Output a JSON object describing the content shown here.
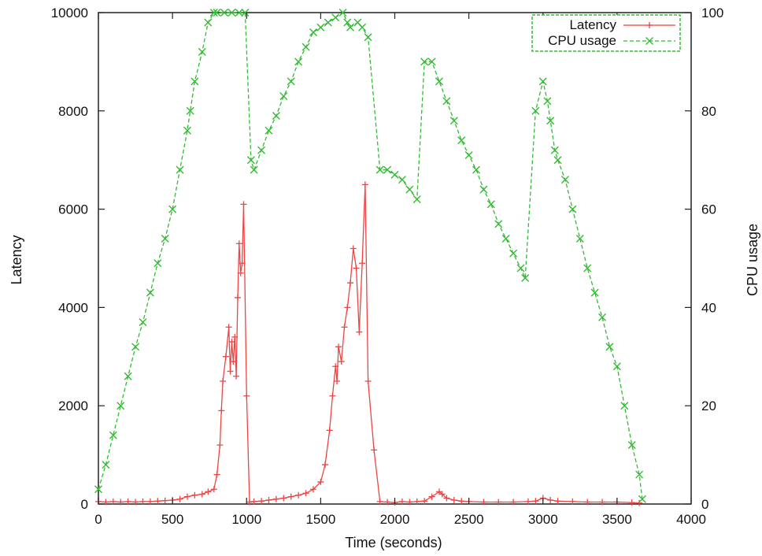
{
  "chart_data": {
    "type": "line",
    "title": "",
    "xlabel": "Time (seconds)",
    "ylabel": "Latency",
    "y2label": "CPU usage",
    "xlim": [
      0,
      4000
    ],
    "ylim": [
      0,
      10000
    ],
    "y2lim": [
      0,
      100
    ],
    "x_ticks": [
      0,
      500,
      1000,
      1500,
      2000,
      2500,
      3000,
      3500,
      4000
    ],
    "y_ticks": [
      0,
      2000,
      4000,
      6000,
      8000,
      10000
    ],
    "y2_ticks": [
      0,
      20,
      40,
      60,
      80,
      100
    ],
    "grid": false,
    "legend_position": "top-right",
    "series": [
      {
        "name": "Latency",
        "axis": "left",
        "color": "#ee4444",
        "marker": "plus",
        "x": [
          0,
          50,
          100,
          150,
          200,
          250,
          300,
          350,
          400,
          450,
          500,
          550,
          600,
          650,
          700,
          740,
          780,
          800,
          820,
          830,
          840,
          860,
          880,
          890,
          900,
          910,
          920,
          930,
          940,
          950,
          960,
          970,
          980,
          1000,
          1020,
          1050,
          1100,
          1150,
          1200,
          1250,
          1300,
          1350,
          1400,
          1450,
          1500,
          1530,
          1560,
          1580,
          1600,
          1610,
          1620,
          1640,
          1660,
          1680,
          1700,
          1720,
          1740,
          1760,
          1780,
          1800,
          1820,
          1860,
          1900,
          1950,
          2000,
          2050,
          2100,
          2150,
          2200,
          2250,
          2300,
          2320,
          2350,
          2400,
          2450,
          2500,
          2600,
          2700,
          2800,
          2900,
          2950,
          3000,
          3050,
          3100,
          3200,
          3300,
          3400,
          3500,
          3600,
          3650
        ],
        "y": [
          50,
          40,
          50,
          40,
          50,
          40,
          50,
          50,
          60,
          70,
          80,
          100,
          150,
          180,
          200,
          250,
          300,
          600,
          1200,
          1900,
          2500,
          3000,
          3600,
          2700,
          3300,
          2900,
          3400,
          2600,
          4200,
          5300,
          4700,
          4900,
          6100,
          2200,
          40,
          50,
          60,
          80,
          100,
          120,
          150,
          180,
          220,
          300,
          450,
          800,
          1500,
          2200,
          2800,
          2500,
          3200,
          2900,
          3600,
          4000,
          4500,
          5200,
          4800,
          3500,
          4900,
          6500,
          2500,
          1100,
          50,
          40,
          30,
          50,
          40,
          50,
          60,
          150,
          250,
          200,
          120,
          80,
          60,
          50,
          40,
          40,
          40,
          50,
          60,
          120,
          80,
          60,
          50,
          40,
          40,
          40,
          30,
          20
        ]
      },
      {
        "name": "CPU usage",
        "axis": "right",
        "color": "#33bb33",
        "marker": "x",
        "x": [
          0,
          50,
          100,
          150,
          200,
          250,
          300,
          350,
          400,
          450,
          500,
          550,
          600,
          620,
          650,
          700,
          740,
          780,
          800,
          850,
          900,
          950,
          990,
          1030,
          1050,
          1100,
          1150,
          1200,
          1250,
          1300,
          1350,
          1400,
          1450,
          1500,
          1550,
          1600,
          1650,
          1680,
          1700,
          1750,
          1780,
          1820,
          1900,
          1950,
          2000,
          2050,
          2100,
          2150,
          2200,
          2250,
          2300,
          2350,
          2400,
          2450,
          2500,
          2550,
          2600,
          2650,
          2700,
          2750,
          2800,
          2850,
          2880,
          2950,
          3000,
          3030,
          3050,
          3080,
          3100,
          3150,
          3200,
          3250,
          3300,
          3350,
          3400,
          3450,
          3500,
          3550,
          3600,
          3650,
          3670
        ],
        "y": [
          3,
          8,
          14,
          20,
          26,
          32,
          37,
          43,
          49,
          54,
          60,
          68,
          76,
          80,
          86,
          92,
          98,
          100,
          100,
          100,
          100,
          100,
          100,
          70,
          68,
          72,
          76,
          79,
          83,
          86,
          90,
          93,
          96,
          97,
          98,
          99,
          100,
          98,
          97,
          98,
          97,
          95,
          68,
          68,
          67,
          66,
          64,
          62,
          90,
          90,
          86,
          82,
          78,
          74,
          71,
          68,
          64,
          61,
          57,
          54,
          51,
          48,
          46,
          80,
          86,
          82,
          78,
          72,
          70,
          66,
          60,
          54,
          48,
          43,
          38,
          32,
          28,
          20,
          12,
          6,
          1
        ]
      }
    ]
  }
}
